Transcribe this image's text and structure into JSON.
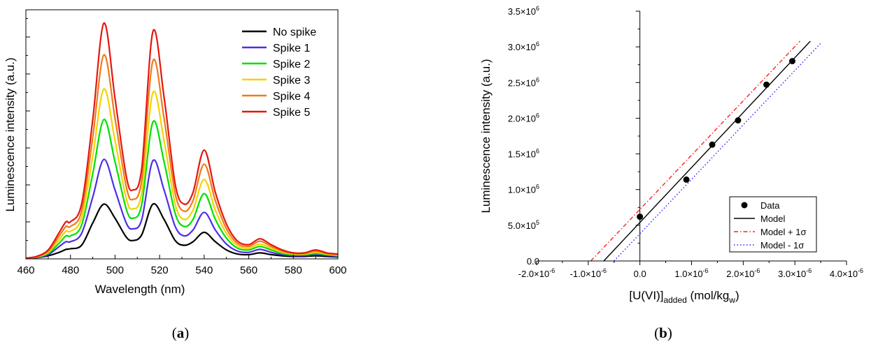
{
  "chart_data": [
    {
      "type": "line",
      "panel_label": "(a)",
      "xlabel": "Wavelength (nm)",
      "ylabel": "Luminescence intensity (a.u.)",
      "xlim": [
        460,
        600
      ],
      "x_ticks": [
        "460",
        "480",
        "500",
        "520",
        "540",
        "560",
        "580",
        "600"
      ],
      "y_ticks_labeled": false,
      "legend_position": "top-right",
      "x": [
        460,
        465,
        470,
        475,
        478,
        480,
        485,
        490,
        495,
        500,
        505,
        508,
        512,
        517,
        522,
        527,
        531,
        535,
        540,
        545,
        550,
        555,
        560,
        565,
        570,
        575,
        580,
        585,
        590,
        595,
        600
      ],
      "series": [
        {
          "name": "No spike",
          "color": "#000000",
          "values": [
            0.0,
            0.5,
            2,
            5,
            7.5,
            8,
            11,
            30,
            46,
            34,
            18,
            15,
            20,
            46,
            33,
            15,
            11,
            14,
            22,
            14,
            7,
            3.5,
            3,
            4.5,
            3,
            2,
            1.5,
            1.5,
            2,
            1.5,
            1
          ]
        },
        {
          "name": "Spike 1",
          "color": "#4b2ee8",
          "values": [
            0.0,
            0.7,
            3,
            10,
            14,
            14,
            21,
            52,
            84,
            58,
            30,
            25,
            33,
            83,
            58,
            27,
            19,
            24,
            39,
            24,
            12,
            6,
            5,
            7.5,
            5,
            3,
            2.2,
            2.2,
            3,
            2.3,
            1.5
          ]
        },
        {
          "name": "Spike 2",
          "color": "#00e000",
          "values": [
            0.0,
            1,
            4,
            13,
            19,
            19,
            28,
            72,
            118,
            82,
            42,
            34,
            46,
            116,
            82,
            38,
            27,
            33,
            55,
            33,
            17,
            8.5,
            7,
            10,
            7,
            4,
            3,
            3,
            4,
            3,
            2
          ]
        },
        {
          "name": "Spike 3",
          "color": "#f2d400",
          "values": [
            0.0,
            1.2,
            5,
            16,
            23,
            23,
            34,
            87,
            144,
            100,
            51,
            42,
            56,
            141,
            100,
            46,
            33,
            41,
            67,
            41,
            21,
            10.5,
            8.5,
            12,
            8.5,
            5,
            3.5,
            3.5,
            5,
            3.5,
            2.5
          ]
        },
        {
          "name": "Spike 4",
          "color": "#ef7a1a",
          "values": [
            0.0,
            1.4,
            6,
            19,
            27,
            27,
            40,
            103,
            173,
            119,
            61,
            50,
            67,
            168,
            119,
            55,
            40,
            49,
            80,
            49,
            25,
            12.5,
            10,
            14.5,
            10,
            6,
            4,
            4,
            6,
            4,
            3
          ]
        },
        {
          "name": "Spike 5",
          "color": "#e6150f",
          "values": [
            0.0,
            1.6,
            7,
            22,
            31,
            31,
            46,
            118,
            200,
            136,
            70,
            58,
            77,
            193,
            137,
            63,
            46,
            56,
            92,
            56,
            29,
            14.5,
            11.5,
            16.5,
            11.5,
            7,
            4.5,
            4.5,
            7,
            4.5,
            3.5
          ]
        }
      ]
    },
    {
      "type": "scatter",
      "panel_label": "(b)",
      "xlabel_main": "[U(VI)]",
      "xlabel_sub": "added",
      "xlabel_units_main": " (mol/kg",
      "xlabel_units_sub": "w",
      "xlabel_units_close": ")",
      "ylabel": "Luminescence intensity (a.u.)",
      "xlim": [
        -2e-06,
        4e-06
      ],
      "ylim": [
        0,
        3500000.0
      ],
      "x_tick_values": [
        -2e-06,
        -1e-06,
        0,
        1e-06,
        2e-06,
        3e-06,
        4e-06
      ],
      "x_tick_labels": [
        [
          "-2.0×10",
          "-6"
        ],
        [
          "-1.0×10",
          "-6"
        ],
        [
          "0.0",
          ""
        ],
        [
          "1.0×10",
          "-6"
        ],
        [
          "2.0×10",
          "-6"
        ],
        [
          "3.0×10",
          "-6"
        ],
        [
          "4.0×10",
          "-6"
        ]
      ],
      "y_tick_values": [
        0,
        500000.0,
        1000000.0,
        1500000.0,
        2000000.0,
        2500000.0,
        3000000.0,
        3500000.0
      ],
      "y_tick_labels": [
        [
          "0.0",
          ""
        ],
        [
          "5.0×10",
          "5"
        ],
        [
          "1.0×10",
          "6"
        ],
        [
          "1.5×10",
          "6"
        ],
        [
          "2.0×10",
          "6"
        ],
        [
          "2.5×10",
          "6"
        ],
        [
          "3.0×10",
          "6"
        ],
        [
          "3.5×10",
          "6"
        ]
      ],
      "legend_position": "bottom-right",
      "data": {
        "name": "Data",
        "x": [
          0.0,
          9e-07,
          1.4e-06,
          1.9e-06,
          2.45e-06,
          2.95e-06
        ],
        "y": [
          620000.0,
          1140000.0,
          1630000.0,
          1970000.0,
          2470000.0,
          2800000.0
        ]
      },
      "lines": [
        {
          "name": "Model",
          "color": "#000000",
          "style": "solid",
          "x": [
            -7e-07,
            3.3e-06
          ],
          "y": [
            0,
            3080000.0
          ]
        },
        {
          "name": "Model + 1σ",
          "color": "#ff2020",
          "style": "dashdot",
          "x": [
            -9.5e-07,
            3.1e-06
          ],
          "y": [
            0,
            3080000.0
          ]
        },
        {
          "name": "Model - 1σ",
          "color": "#2020ff",
          "style": "dotted",
          "x": [
            -5e-07,
            3.5e-06
          ],
          "y": [
            0,
            3050000.0
          ]
        }
      ]
    }
  ]
}
